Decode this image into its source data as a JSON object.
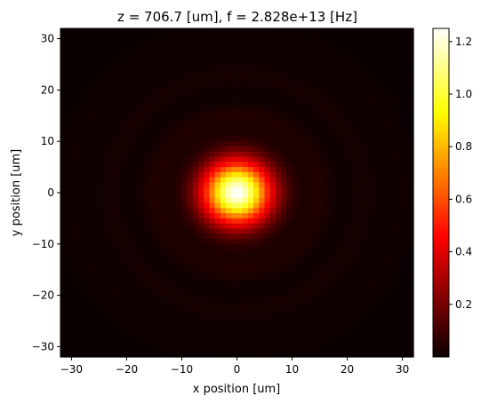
{
  "chart_data": {
    "type": "heatmap",
    "title": "z = 706.7 [um], f = 2.828e+13 [Hz]",
    "xlabel": "x position [um]",
    "ylabel": "y position [um]",
    "xlim": [
      -32,
      32
    ],
    "ylim": [
      -32,
      32
    ],
    "x_ticks": [
      -30,
      -20,
      -10,
      0,
      10,
      20,
      30
    ],
    "y_ticks": [
      -30,
      -20,
      -10,
      0,
      10,
      20,
      30
    ],
    "colormap": "hot",
    "colorbar": {
      "range": [
        0,
        1.25
      ],
      "ticks": [
        0.2,
        0.4,
        0.6,
        0.8,
        1.0,
        1.2
      ]
    },
    "grid": false,
    "field": {
      "peak_value": 1.25,
      "peak_center": [
        0,
        0
      ],
      "central_spot_radius_um": 6,
      "ring_radii_um": [
        15,
        23,
        30
      ],
      "ring_peak_values": [
        0.035,
        0.02,
        0.01
      ]
    }
  }
}
